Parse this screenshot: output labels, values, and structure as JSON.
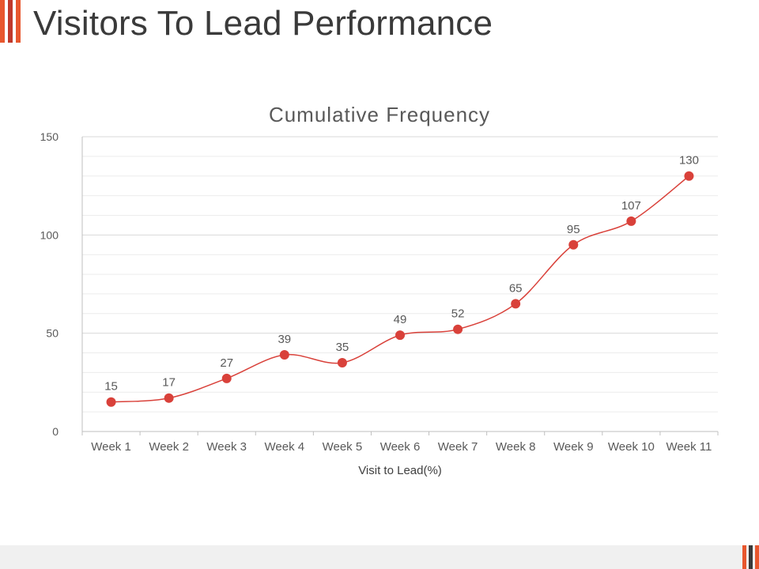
{
  "slide": {
    "title": "Visitors To Lead Performance",
    "accent_colors": [
      "#e8572e",
      "#c0392b",
      "#3a3a3a",
      "#e8572e"
    ]
  },
  "chart_data": {
    "type": "line",
    "title": "Cumulative Frequency",
    "xlabel": "Visit to Lead(%)",
    "ylabel": "",
    "categories": [
      "Week 1",
      "Week 2",
      "Week 3",
      "Week 4",
      "Week 5",
      "Week 6",
      "Week 7",
      "Week 8",
      "Week 9",
      "Week 10",
      "Week 11"
    ],
    "series": [
      {
        "values": [
          15,
          17,
          27,
          39,
          35,
          49,
          52,
          65,
          95,
          107,
          130
        ],
        "color": "#d9413a"
      }
    ],
    "ylim": [
      0,
      150
    ],
    "yticks": [
      0,
      50,
      100,
      150
    ],
    "grid": true,
    "smooth": true,
    "data_labels": true,
    "legend": "none"
  }
}
